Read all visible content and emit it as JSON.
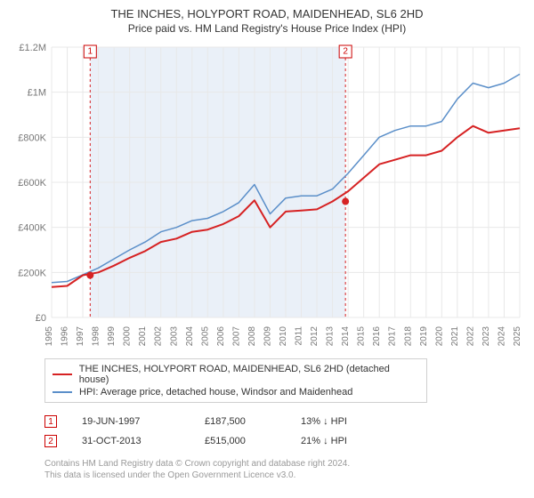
{
  "title": "THE INCHES, HOLYPORT ROAD, MAIDENHEAD, SL6 2HD",
  "subtitle": "Price paid vs. HM Land Registry's House Price Index (HPI)",
  "chart": {
    "type": "line",
    "x_years": [
      1995,
      1996,
      1997,
      1998,
      1999,
      2000,
      2001,
      2002,
      2003,
      2004,
      2005,
      2006,
      2007,
      2008,
      2009,
      2010,
      2011,
      2012,
      2013,
      2014,
      2015,
      2016,
      2017,
      2018,
      2019,
      2020,
      2021,
      2022,
      2023,
      2024,
      2025
    ],
    "ylim": [
      0,
      1200000
    ],
    "yticks": [
      0,
      200000,
      400000,
      600000,
      800000,
      1000000,
      1200000
    ],
    "ytick_labels": [
      "£0",
      "£200K",
      "£400K",
      "£600K",
      "£800K",
      "£1M",
      "£1.2M"
    ],
    "grid_color": "#e8e8e8",
    "background_color": "#ffffff",
    "plot_bg": "#ffffff",
    "shade_color": "#eaf0f8",
    "series": {
      "hpi": {
        "label": "HPI: Average price, detached house, Windsor and Maidenhead",
        "color": "#5b8fc9",
        "width": 1.5,
        "values": [
          155000,
          160000,
          190000,
          220000,
          260000,
          300000,
          335000,
          380000,
          400000,
          430000,
          440000,
          470000,
          510000,
          590000,
          460000,
          530000,
          540000,
          540000,
          570000,
          640000,
          720000,
          800000,
          830000,
          850000,
          850000,
          870000,
          970000,
          1040000,
          1020000,
          1040000,
          1080000
        ]
      },
      "price_paid": {
        "label": "THE INCHES, HOLYPORT ROAD, MAIDENHEAD, SL6 2HD (detached house)",
        "color": "#d62223",
        "width": 2,
        "values": [
          135000,
          140000,
          187500,
          200000,
          230000,
          265000,
          295000,
          335000,
          350000,
          380000,
          390000,
          415000,
          450000,
          520000,
          400000,
          470000,
          475000,
          480000,
          515000,
          560000,
          620000,
          680000,
          700000,
          720000,
          720000,
          740000,
          800000,
          850000,
          820000,
          830000,
          840000
        ]
      }
    },
    "markers": [
      {
        "n": "1",
        "year_frac": 1997.47,
        "value": 187500
      },
      {
        "n": "2",
        "year_frac": 2013.83,
        "value": 515000
      }
    ],
    "label_fontsize": 11,
    "tick_fontsize": 10
  },
  "legend": [
    {
      "color": "#d62223",
      "label": "THE INCHES, HOLYPORT ROAD, MAIDENHEAD, SL6 2HD (detached house)"
    },
    {
      "color": "#5b8fc9",
      "label": "HPI: Average price, detached house, Windsor and Maidenhead"
    }
  ],
  "events": [
    {
      "n": "1",
      "date": "19-JUN-1997",
      "price": "£187,500",
      "delta": "13% ↓ HPI"
    },
    {
      "n": "2",
      "date": "31-OCT-2013",
      "price": "£515,000",
      "delta": "21% ↓ HPI"
    }
  ],
  "footer_line1": "Contains HM Land Registry data © Crown copyright and database right 2024.",
  "footer_line2": "This data is licensed under the Open Government Licence v3.0."
}
